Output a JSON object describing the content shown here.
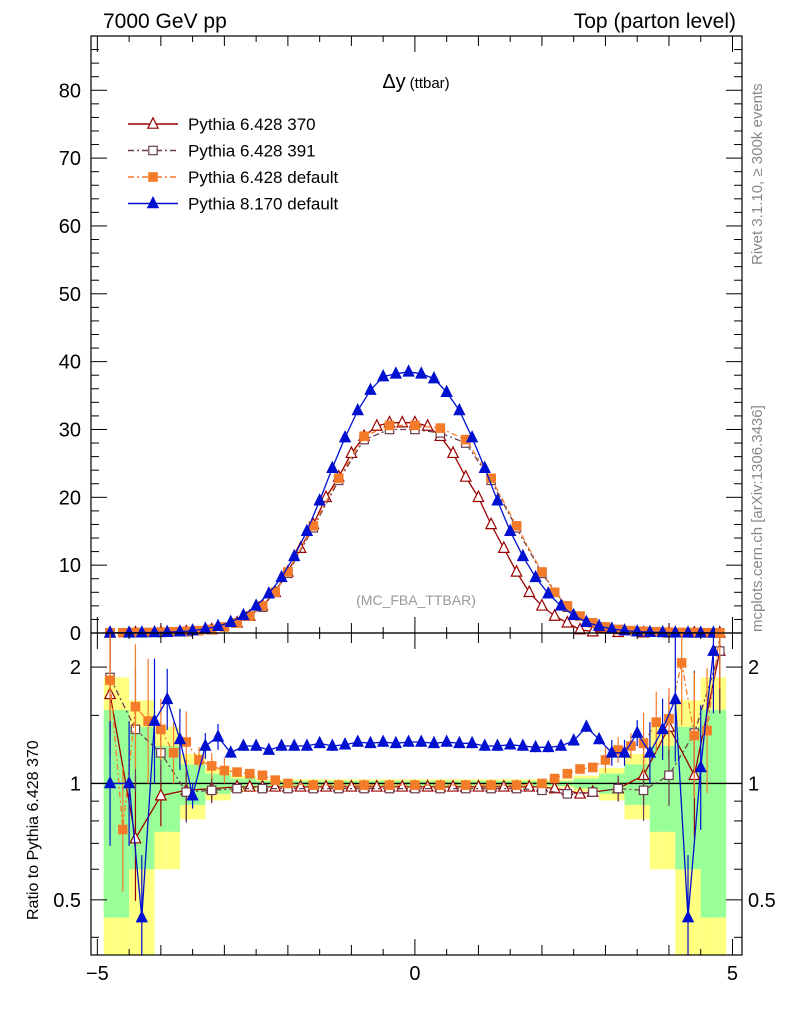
{
  "header": {
    "left": "7000 GeV pp",
    "right": "Top (parton level)"
  },
  "side_labels": {
    "rivet": "Rivet 3.1.10, ≥ 300k events",
    "mcplots": "mcplots.cern.ch [arXiv:1306.3436]"
  },
  "chart_data": {
    "type": "line",
    "title": "Δy",
    "title_suffix": "(ttbar)",
    "watermark": "(MC_FBA_TTBAR)",
    "xlim": [
      -5.1,
      5.15
    ],
    "x_ticks": [
      -5,
      0,
      5
    ],
    "x_tick_labels": [
      "−5",
      "0",
      "5"
    ],
    "main": {
      "ylim": [
        0,
        88
      ],
      "y_ticks": [
        0,
        10,
        20,
        30,
        40,
        50,
        60,
        70,
        80
      ],
      "y_tick_labels": [
        "0",
        "10",
        "20",
        "30",
        "40",
        "50",
        "60",
        "70",
        "80"
      ]
    },
    "ratio": {
      "ylabel": "Ratio to Pythia 6.428 370",
      "log_scale": true,
      "ylim": [
        0.36,
        2.45
      ],
      "y_ticks": [
        0.5,
        1,
        2
      ],
      "y_tick_labels": [
        "0.5",
        "1",
        "2"
      ],
      "reference": 1.0
    },
    "legend_position": "top-left",
    "series": [
      {
        "name": "Pythia 6.428 370",
        "color": "#9a0000",
        "marker": "open-triangle",
        "dash": "",
        "x": [
          -4.8,
          -4.4,
          -4.0,
          -3.6,
          -3.2,
          -2.8,
          -2.6,
          -2.4,
          -2.2,
          -2.0,
          -1.8,
          -1.6,
          -1.4,
          -1.2,
          -1.0,
          -0.8,
          -0.6,
          -0.4,
          -0.2,
          0.0,
          0.2,
          0.4,
          0.6,
          0.8,
          1.0,
          1.2,
          1.4,
          1.6,
          1.8,
          2.0,
          2.2,
          2.4,
          2.6,
          2.8,
          3.2,
          3.6,
          4.0,
          4.4,
          4.8
        ],
        "y": [
          0.03,
          0.05,
          0.1,
          0.2,
          0.5,
          1.5,
          2.5,
          4.0,
          6.0,
          9.0,
          12.5,
          16.0,
          20.0,
          23.0,
          26.5,
          29.0,
          30.5,
          31.0,
          31.0,
          31.0,
          30.5,
          29.0,
          26.5,
          23.0,
          20.0,
          16.0,
          12.5,
          9.0,
          6.0,
          4.0,
          2.5,
          1.5,
          0.5,
          0.2,
          0.1,
          0.05,
          0.03,
          0.02,
          0.01
        ],
        "ratio": [
          1.7,
          0.72,
          0.93,
          0.96,
          0.97,
          0.98,
          0.98,
          0.98,
          0.98,
          0.98,
          0.98,
          0.98,
          0.98,
          0.98,
          0.98,
          0.98,
          0.98,
          0.98,
          0.98,
          0.98,
          0.98,
          0.98,
          0.98,
          0.98,
          0.98,
          0.98,
          0.98,
          0.98,
          0.98,
          0.98,
          0.97,
          0.96,
          0.94,
          0.95,
          0.97,
          1.05,
          1.4,
          1.05,
          2.2
        ]
      },
      {
        "name": "Pythia 6.428 391",
        "color": "#6b3c50",
        "marker": "open-square",
        "dash": "6,3,2,3",
        "x": [
          -4.8,
          -4.4,
          -4.0,
          -3.6,
          -3.2,
          -2.8,
          -2.4,
          -2.0,
          -1.6,
          -1.2,
          -0.8,
          -0.4,
          0.0,
          0.4,
          0.8,
          1.2,
          1.6,
          2.0,
          2.4,
          2.8,
          3.2,
          3.6,
          4.0,
          4.4,
          4.8
        ],
        "y": [
          0.03,
          0.05,
          0.1,
          0.2,
          0.5,
          1.5,
          3.8,
          8.8,
          15.5,
          22.5,
          28.5,
          30.0,
          30.0,
          29.5,
          28.0,
          22.5,
          15.5,
          8.8,
          3.8,
          1.5,
          0.5,
          0.2,
          0.1,
          0.05,
          0.02
        ],
        "ratio": [
          1.88,
          1.38,
          1.2,
          0.95,
          0.96,
          0.97,
          0.97,
          0.97,
          0.97,
          0.97,
          0.97,
          0.97,
          0.97,
          0.97,
          0.97,
          0.97,
          0.97,
          0.96,
          0.94,
          0.95,
          0.97,
          0.96,
          1.05,
          1.35,
          2.2
        ]
      },
      {
        "name": "Pythia 6.428 default",
        "color": "#f47b29",
        "marker": "filled-square",
        "dash": "6,3,2,3",
        "x": [
          -4.8,
          -4.6,
          -4.4,
          -4.2,
          -4.0,
          -3.8,
          -3.6,
          -3.4,
          -3.2,
          -3.0,
          -2.8,
          -2.6,
          -2.4,
          -2.2,
          -2.0,
          -1.6,
          -1.2,
          -0.8,
          -0.4,
          0.0,
          0.4,
          0.8,
          1.2,
          1.6,
          2.0,
          2.2,
          2.4,
          2.6,
          2.8,
          3.0,
          3.2,
          3.4,
          3.6,
          3.8,
          4.0,
          4.2,
          4.4,
          4.6,
          4.8
        ],
        "y": [
          0.03,
          0.04,
          0.06,
          0.08,
          0.12,
          0.18,
          0.25,
          0.35,
          0.5,
          0.9,
          1.5,
          2.5,
          4.0,
          6.0,
          9.0,
          15.8,
          22.8,
          29.0,
          30.6,
          30.6,
          30.2,
          28.5,
          22.8,
          15.8,
          9.0,
          6.0,
          4.0,
          2.5,
          1.5,
          0.9,
          0.5,
          0.35,
          0.25,
          0.18,
          0.12,
          0.08,
          0.06,
          0.04,
          0.02
        ],
        "ratio": [
          1.85,
          0.76,
          1.58,
          1.45,
          1.38,
          1.2,
          1.28,
          1.15,
          1.11,
          1.08,
          1.07,
          1.06,
          1.05,
          1.02,
          1.0,
          0.99,
          0.99,
          0.99,
          0.99,
          0.99,
          0.99,
          0.99,
          0.99,
          0.99,
          1.0,
          1.03,
          1.06,
          1.09,
          1.1,
          1.15,
          1.22,
          1.25,
          1.27,
          1.44,
          1.47,
          2.05,
          1.33,
          1.37,
          2.55
        ]
      },
      {
        "name": "Pythia 8.170 default",
        "color": "#0010d0",
        "marker": "filled-triangle",
        "dash": "",
        "x": [
          -4.8,
          -4.5,
          -4.3,
          -4.1,
          -3.9,
          -3.7,
          -3.5,
          -3.3,
          -3.1,
          -2.9,
          -2.7,
          -2.5,
          -2.3,
          -2.1,
          -1.9,
          -1.7,
          -1.5,
          -1.3,
          -1.1,
          -0.9,
          -0.7,
          -0.5,
          -0.3,
          -0.1,
          0.1,
          0.3,
          0.5,
          0.7,
          0.9,
          1.1,
          1.3,
          1.5,
          1.7,
          1.9,
          2.1,
          2.3,
          2.5,
          2.7,
          2.9,
          3.1,
          3.3,
          3.5,
          3.7,
          3.9,
          4.1,
          4.3,
          4.5,
          4.7
        ],
        "y": [
          0.02,
          0.03,
          0.05,
          0.08,
          0.12,
          0.2,
          0.35,
          0.6,
          1.0,
          1.6,
          2.6,
          4.0,
          5.8,
          8.2,
          11.3,
          15.0,
          19.5,
          24.3,
          28.8,
          32.8,
          35.8,
          37.8,
          38.2,
          38.5,
          38.2,
          37.5,
          35.5,
          32.8,
          28.8,
          24.3,
          19.5,
          15.0,
          11.3,
          8.2,
          5.8,
          4.0,
          2.6,
          1.6,
          1.0,
          0.6,
          0.35,
          0.2,
          0.12,
          0.08,
          0.05,
          0.03,
          0.02,
          0.01
        ],
        "ratio": [
          1.0,
          1.0,
          0.45,
          1.45,
          1.65,
          1.3,
          0.93,
          1.25,
          1.32,
          1.2,
          1.25,
          1.25,
          1.22,
          1.25,
          1.25,
          1.25,
          1.27,
          1.25,
          1.26,
          1.28,
          1.27,
          1.28,
          1.27,
          1.28,
          1.28,
          1.27,
          1.28,
          1.27,
          1.27,
          1.25,
          1.25,
          1.26,
          1.25,
          1.24,
          1.24,
          1.25,
          1.29,
          1.4,
          1.3,
          1.2,
          1.2,
          1.35,
          1.2,
          1.38,
          1.65,
          0.45,
          1.1,
          2.2
        ]
      }
    ]
  }
}
